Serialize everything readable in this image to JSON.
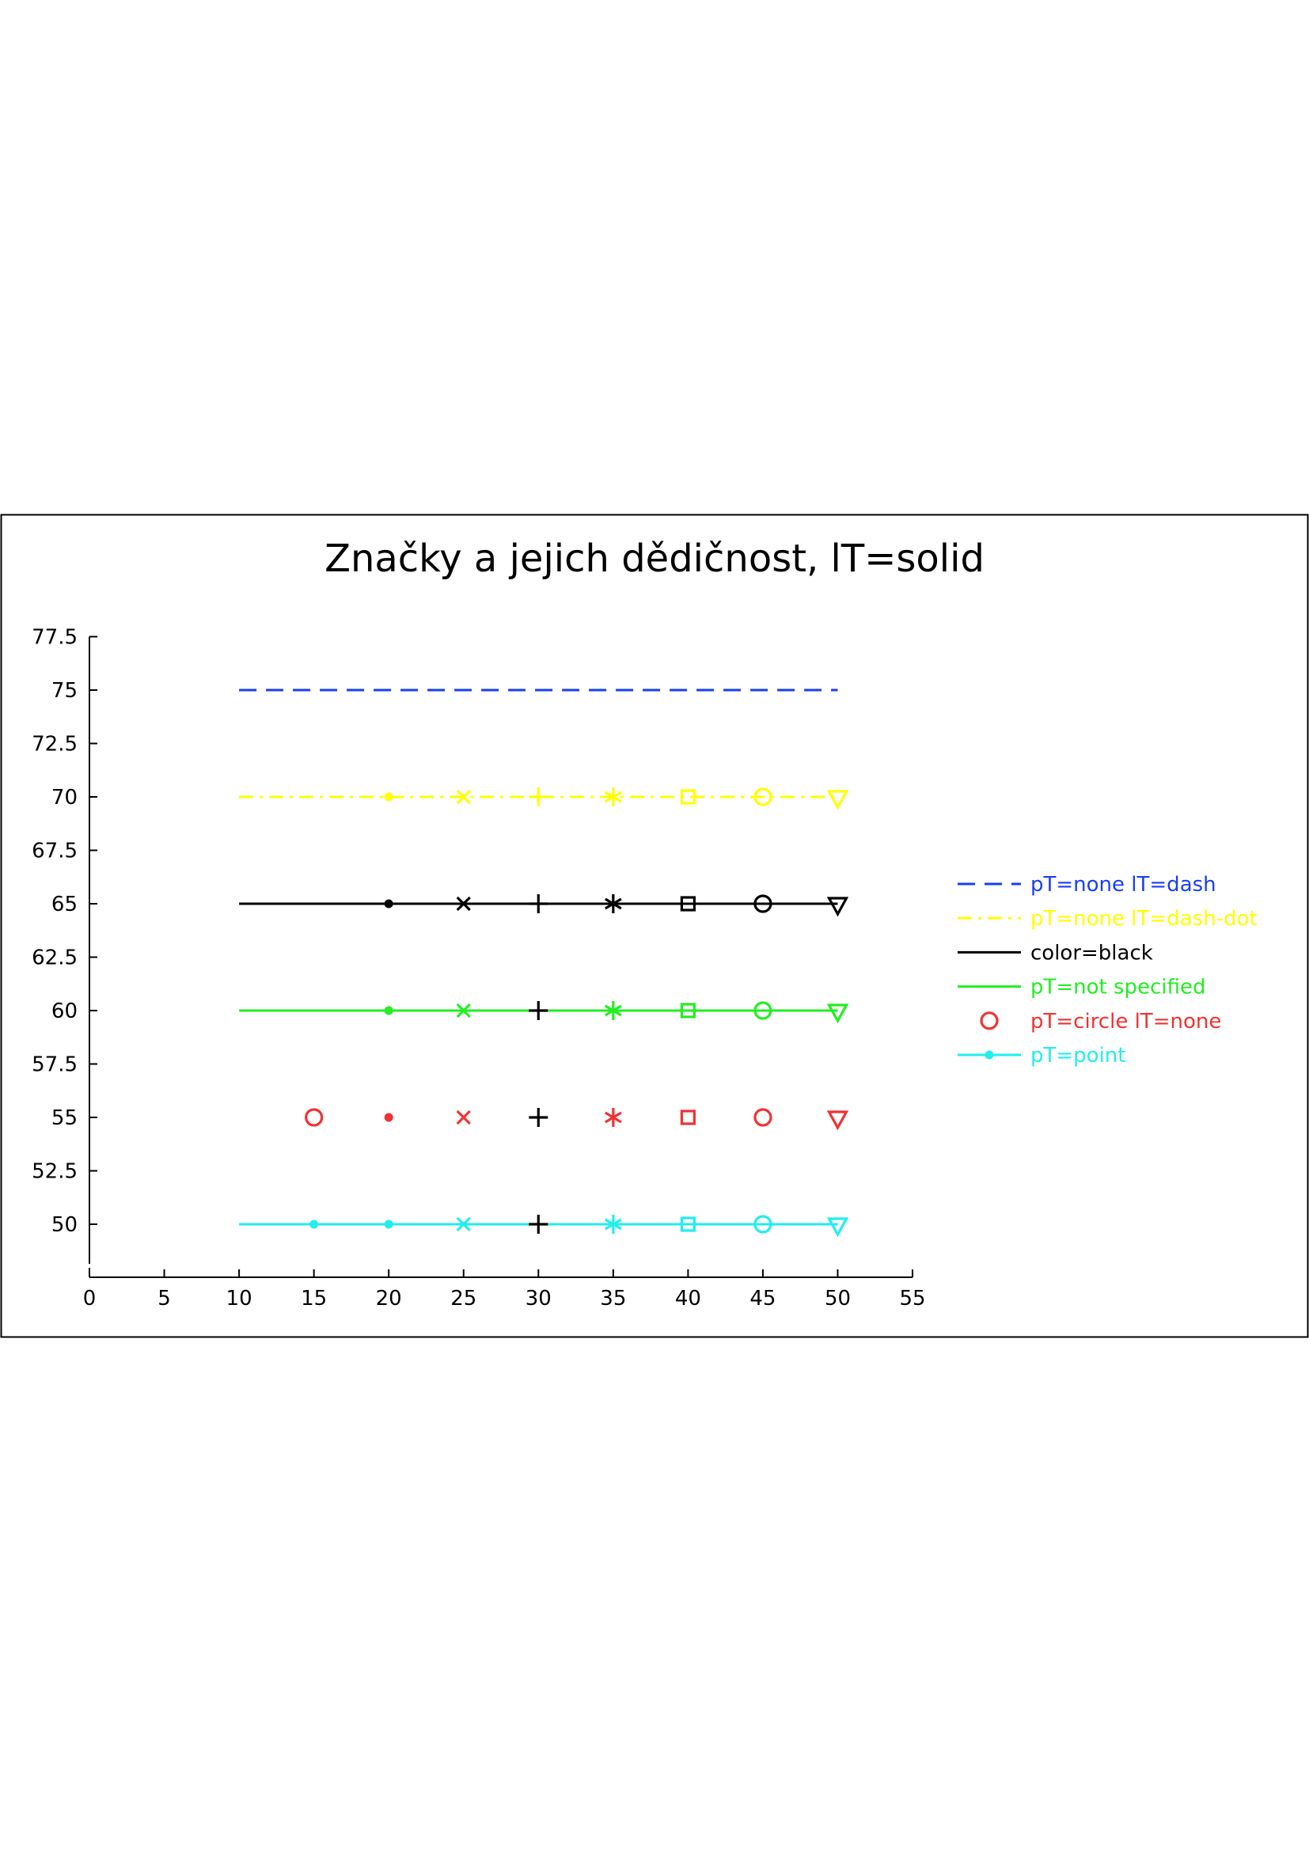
{
  "chart_data": {
    "type": "line",
    "title": "Značky a jejich dědičnost, lT=solid",
    "xlabel": "",
    "ylabel": "",
    "xlim": [
      0,
      55
    ],
    "ylim": [
      47.5,
      77.5
    ],
    "x_ticks": [
      "0",
      "5",
      "10",
      "15",
      "20",
      "25",
      "30",
      "35",
      "40",
      "45",
      "50",
      "55"
    ],
    "y_ticks": [
      "50",
      "52.5",
      "55",
      "57.5",
      "60",
      "62.5",
      "65",
      "67.5",
      "70",
      "72.5",
      "75",
      "77.5"
    ],
    "legend_position": "right",
    "grid": false,
    "series": [
      {
        "name": "pT=none lT=dash",
        "color": "#1a3ef2",
        "line": "dash",
        "legend_marker": "none",
        "x": [
          10,
          15,
          20,
          25,
          30,
          35,
          40,
          45,
          50
        ],
        "y": [
          75,
          75,
          75,
          75,
          75,
          75,
          75,
          75,
          75
        ],
        "markers": [
          "none",
          "none",
          "none",
          "none",
          "none",
          "none",
          "none",
          "none",
          "none"
        ],
        "marker_colors": []
      },
      {
        "name": "pT=none lT=dash-dot",
        "color": "#ffff00",
        "line": "dash-dot",
        "legend_marker": "none",
        "x": [
          10,
          15,
          20,
          25,
          30,
          35,
          40,
          45,
          50
        ],
        "y": [
          70,
          70,
          70,
          70,
          70,
          70,
          70,
          70,
          70
        ],
        "markers": [
          "none",
          "none",
          "point",
          "cross",
          "plus",
          "star",
          "square",
          "circle",
          "triangle-down"
        ],
        "marker_colors": []
      },
      {
        "name": "color=black",
        "color": "#000000",
        "line": "solid",
        "legend_marker": "none",
        "x": [
          10,
          15,
          20,
          25,
          30,
          35,
          40,
          45,
          50
        ],
        "y": [
          65,
          65,
          65,
          65,
          65,
          65,
          65,
          65,
          65
        ],
        "markers": [
          "none",
          "none",
          "point",
          "cross",
          "plus",
          "star",
          "square",
          "circle",
          "triangle-down"
        ],
        "marker_colors": []
      },
      {
        "name": "pT=not specified",
        "color": "#22ee22",
        "line": "solid",
        "legend_marker": "none",
        "x": [
          10,
          15,
          20,
          25,
          30,
          35,
          40,
          45,
          50
        ],
        "y": [
          60,
          60,
          60,
          60,
          60,
          60,
          60,
          60,
          60
        ],
        "markers": [
          "none",
          "none",
          "point",
          "cross",
          "plus",
          "star",
          "square",
          "circle",
          "triangle-down"
        ],
        "marker_colors": [
          "",
          "",
          "",
          "",
          "#000000",
          "",
          "",
          "",
          ""
        ]
      },
      {
        "name": "pT=circle lT=none",
        "color": "#f03232",
        "line": "none",
        "legend_marker": "circle",
        "x": [
          15,
          20,
          25,
          30,
          35,
          40,
          45,
          50
        ],
        "y": [
          55,
          55,
          55,
          55,
          55,
          55,
          55,
          55
        ],
        "markers": [
          "circle",
          "point",
          "cross",
          "plus",
          "star",
          "square",
          "circle",
          "triangle-down"
        ],
        "marker_colors": [
          "",
          "",
          "",
          "#000000",
          "",
          "",
          "",
          ""
        ]
      },
      {
        "name": "pT=point",
        "color": "#22eeee",
        "line": "solid",
        "legend_marker": "point",
        "x": [
          10,
          15,
          20,
          25,
          30,
          35,
          40,
          45,
          50
        ],
        "y": [
          50,
          50,
          50,
          50,
          50,
          50,
          50,
          50,
          50
        ],
        "markers": [
          "none",
          "point",
          "point",
          "cross",
          "plus",
          "star",
          "square",
          "circle",
          "triangle-down"
        ],
        "marker_colors": [
          "",
          "",
          "",
          "",
          "#000000",
          "",
          "",
          "",
          ""
        ]
      }
    ]
  }
}
